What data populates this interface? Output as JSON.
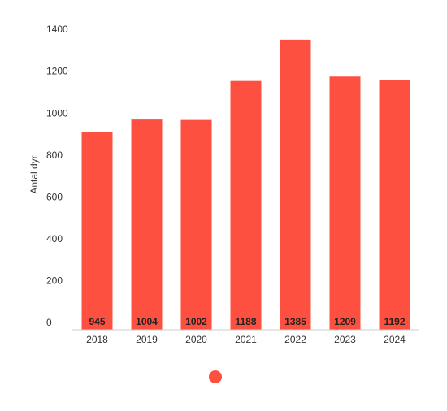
{
  "chart_data": {
    "type": "bar",
    "y_label": "Antal dyr",
    "categories": [
      "2018",
      "2019",
      "2020",
      "2021",
      "2022",
      "2023",
      "2024"
    ],
    "values": [
      945,
      1004,
      1002,
      1188,
      1385,
      1209,
      1192
    ],
    "color": "#fe5040",
    "ylim": [
      0,
      1400
    ],
    "yticks": [
      0,
      200,
      400,
      600,
      800,
      1000,
      1200,
      1400
    ],
    "grid": false
  }
}
